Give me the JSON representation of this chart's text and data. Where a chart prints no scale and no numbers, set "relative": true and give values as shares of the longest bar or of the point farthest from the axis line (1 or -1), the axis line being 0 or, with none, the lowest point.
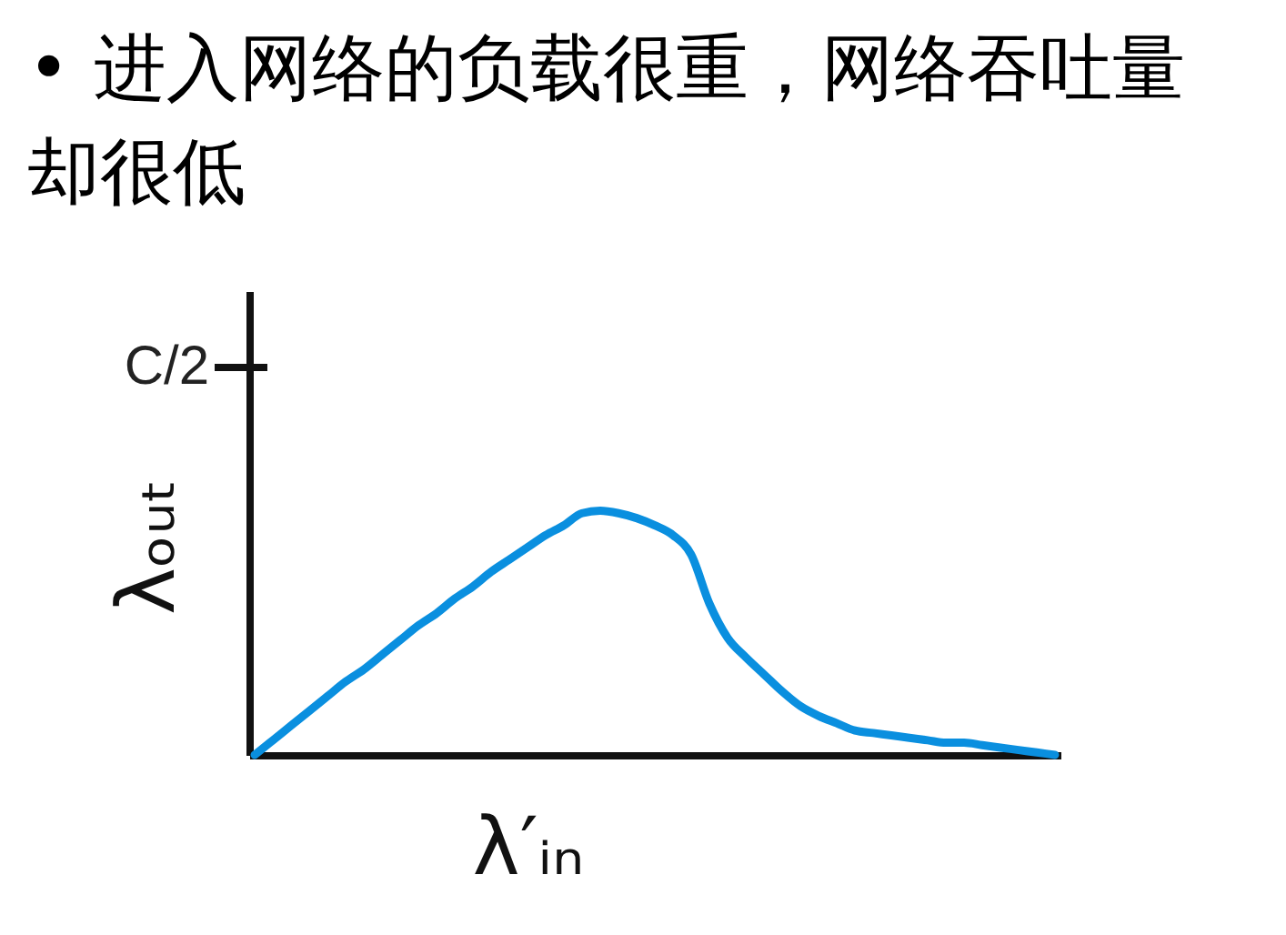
{
  "chart_data": {
    "type": "line",
    "title": "• 进入网络的负载很重，网络吞吐量却很低",
    "xlabel": "λ′ᵢₙ",
    "ylabel": "λₒᵤₜ",
    "categories": [
      null,
      null,
      null,
      null,
      null,
      null,
      null,
      null,
      null,
      null,
      null,
      null,
      null,
      null,
      null,
      null,
      null,
      null,
      null,
      null,
      null,
      null,
      null,
      null,
      null,
      null,
      null,
      null,
      null,
      null,
      null,
      null,
      null,
      null,
      null,
      null,
      null,
      null,
      null,
      null,
      null,
      null,
      null,
      null,
      null
    ],
    "series": [
      {
        "color": "#0a8fdf",
        "values": [
          0,
          0.06,
          0.12,
          0.18,
          0.24,
          0.3,
          0.35,
          0.41,
          0.47,
          0.53,
          0.58,
          0.64,
          0.69,
          0.75,
          0.8,
          0.85,
          0.9,
          0.94,
          0.99,
          1,
          0.99,
          0.97,
          0.94,
          0.9,
          0.82,
          0.62,
          0.48,
          0.4,
          0.33,
          0.26,
          0.2,
          0.16,
          0.13,
          0.1,
          0.09,
          0.08,
          0.07,
          0.06,
          0.05,
          0.05,
          0.04,
          0.03,
          0.02,
          0.01,
          0
        ]
      }
    ],
    "relative": true,
    "annotations": [
      "C/2"
    ],
    "grid": false
  }
}
